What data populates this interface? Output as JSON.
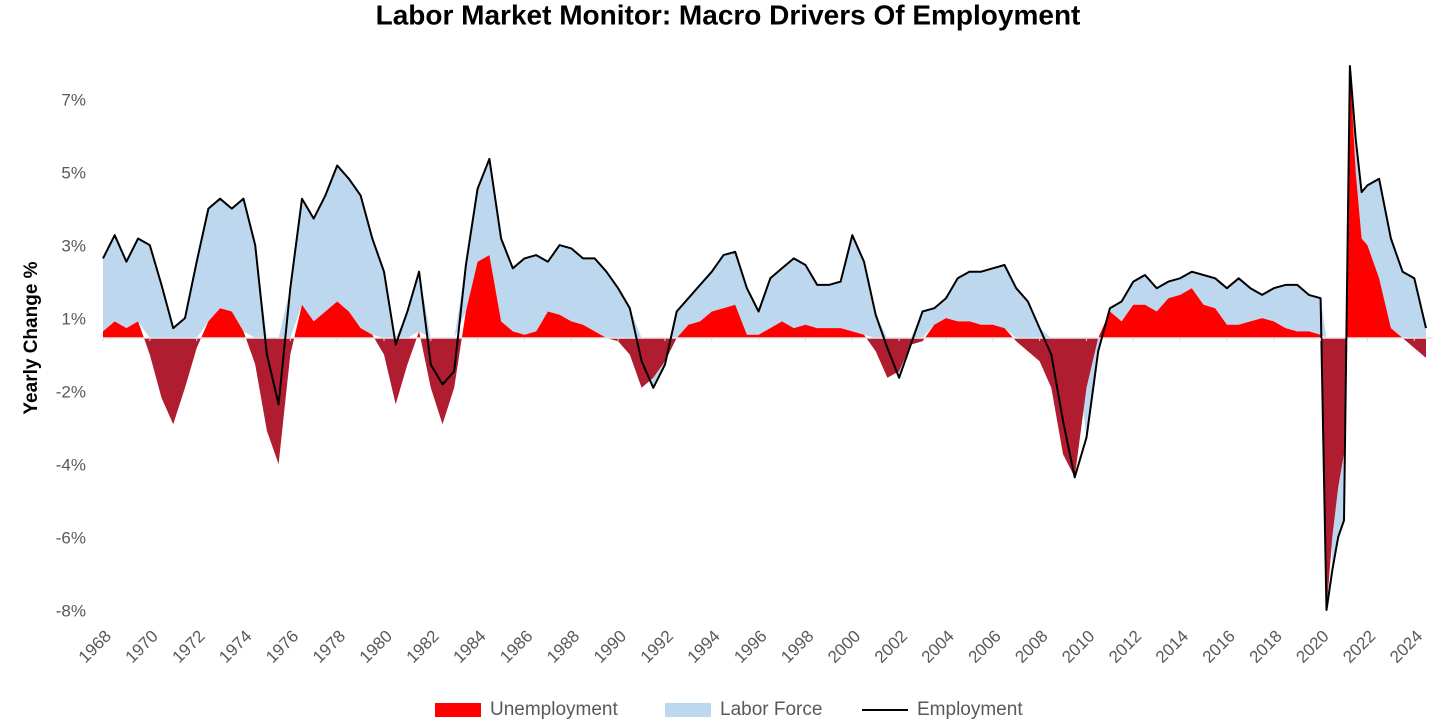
{
  "chart_data": {
    "type": "stacked-area-line",
    "title": "Labor Market Monitor: Macro Drivers Of Employment",
    "ylabel": "Yearly Change %",
    "xlim": [
      1968,
      2024.8
    ],
    "xticks": [
      1968,
      1970,
      1972,
      1974,
      1976,
      1978,
      1980,
      1982,
      1984,
      1986,
      1988,
      1990,
      1992,
      1994,
      1996,
      1998,
      2000,
      2002,
      2004,
      2006,
      2008,
      2010,
      2012,
      2014,
      2016,
      2018,
      2020,
      2022,
      2024
    ],
    "ylim": [
      -8.26,
      8.2
    ],
    "yticks": [
      {
        "value": 7.14,
        "label": "7%"
      },
      {
        "value": 4.94,
        "label": "5%"
      },
      {
        "value": 2.74,
        "label": "3%"
      },
      {
        "value": 0.54,
        "label": "1%"
      },
      {
        "value": -1.66,
        "label": "-2%"
      },
      {
        "value": -3.86,
        "label": "-4%"
      },
      {
        "value": -6.06,
        "label": "-6%"
      },
      {
        "value": -8.26,
        "label": "-8%"
      }
    ],
    "x": [
      1968.0,
      1968.5,
      1969.0,
      1969.5,
      1970.0,
      1970.5,
      1971.0,
      1971.5,
      1972.0,
      1972.5,
      1973.0,
      1973.5,
      1974.0,
      1974.5,
      1975.0,
      1975.5,
      1976.0,
      1976.5,
      1977.0,
      1977.5,
      1978.0,
      1978.5,
      1979.0,
      1979.5,
      1980.0,
      1980.5,
      1981.0,
      1981.5,
      1982.0,
      1982.5,
      1983.0,
      1983.5,
      1984.0,
      1984.5,
      1985.0,
      1985.5,
      1986.0,
      1986.5,
      1987.0,
      1987.5,
      1988.0,
      1988.5,
      1989.0,
      1989.5,
      1990.0,
      1990.5,
      1991.0,
      1991.5,
      1992.0,
      1992.5,
      1993.0,
      1993.5,
      1994.0,
      1994.5,
      1995.0,
      1995.5,
      1996.0,
      1996.5,
      1997.0,
      1997.5,
      1998.0,
      1998.5,
      1999.0,
      1999.5,
      2000.0,
      2000.5,
      2001.0,
      2001.5,
      2002.0,
      2002.5,
      2003.0,
      2003.5,
      2004.0,
      2004.5,
      2005.0,
      2005.5,
      2006.0,
      2006.5,
      2007.0,
      2007.5,
      2008.0,
      2008.5,
      2009.0,
      2009.5,
      2010.0,
      2010.5,
      2011.0,
      2011.5,
      2012.0,
      2012.5,
      2013.0,
      2013.5,
      2014.0,
      2014.5,
      2015.0,
      2015.5,
      2016.0,
      2016.5,
      2017.0,
      2017.5,
      2018.0,
      2018.5,
      2019.0,
      2019.5,
      2020.0,
      2020.25,
      2020.5,
      2020.75,
      2021.0,
      2021.25,
      2021.5,
      2021.75,
      2022.0,
      2022.5,
      2023.0,
      2023.5,
      2024.0,
      2024.5
    ],
    "series": [
      {
        "name": "Unemployment",
        "kind": "area",
        "color": "#ff0000",
        "negative_color": "#b01c30",
        "values": [
          0.2,
          0.5,
          0.3,
          0.5,
          -0.5,
          -1.8,
          -2.6,
          -1.5,
          -0.3,
          0.5,
          0.9,
          0.8,
          0.2,
          -0.8,
          -2.8,
          -3.8,
          -0.5,
          1.0,
          0.5,
          0.8,
          1.1,
          0.8,
          0.3,
          0.1,
          -0.5,
          -2.0,
          -0.8,
          0.2,
          -1.5,
          -2.6,
          -1.5,
          0.8,
          2.3,
          2.5,
          0.5,
          0.2,
          0.1,
          0.2,
          0.8,
          0.7,
          0.5,
          0.4,
          0.2,
          0.0,
          -0.1,
          -0.5,
          -1.5,
          -1.2,
          -0.7,
          0.0,
          0.4,
          0.5,
          0.8,
          0.9,
          1.0,
          0.1,
          0.1,
          0.3,
          0.5,
          0.3,
          0.4,
          0.3,
          0.3,
          0.3,
          0.2,
          0.1,
          -0.4,
          -1.2,
          -1.0,
          -0.2,
          -0.1,
          0.4,
          0.6,
          0.5,
          0.5,
          0.4,
          0.4,
          0.3,
          -0.1,
          -0.4,
          -0.7,
          -1.5,
          -3.5,
          -4.2,
          -1.5,
          0.0,
          0.8,
          0.5,
          1.0,
          1.0,
          0.8,
          1.2,
          1.3,
          1.5,
          1.0,
          0.9,
          0.4,
          0.4,
          0.5,
          0.6,
          0.5,
          0.3,
          0.2,
          0.2,
          0.1,
          -8.2,
          -6.0,
          -4.5,
          -3.5,
          8.2,
          5.0,
          3.0,
          2.8,
          1.8,
          0.3,
          0.0,
          -0.3,
          -0.6
        ]
      },
      {
        "name": "Labor Force",
        "kind": "area",
        "color": "#bdd7ee",
        "values": [
          2.2,
          2.6,
          2.0,
          2.5,
          2.8,
          1.6,
          0.3,
          0.6,
          2.3,
          3.4,
          3.3,
          3.1,
          4.0,
          2.8,
          0,
          0,
          1.5,
          3.2,
          3.1,
          3.5,
          4.1,
          4.0,
          4.0,
          2.9,
          2.0,
          0,
          0.8,
          1.8,
          0,
          0,
          0,
          1.4,
          2.2,
          2.9,
          2.5,
          1.9,
          2.3,
          2.3,
          1.5,
          2.1,
          2.2,
          2.0,
          2.2,
          2.0,
          1.5,
          0.9,
          0,
          -0.3,
          -0.1,
          0.8,
          0.8,
          1.1,
          1.2,
          1.6,
          1.6,
          1.4,
          0.7,
          1.5,
          1.6,
          2.1,
          1.8,
          1.3,
          1.3,
          1.4,
          2.9,
          2.2,
          0.7,
          0,
          -0.2,
          0,
          0.8,
          0.5,
          0.6,
          1.3,
          1.5,
          1.6,
          1.7,
          1.9,
          1.5,
          1.1,
          0.3,
          0,
          0,
          0,
          -1.5,
          -0.4,
          0.1,
          0.6,
          0.7,
          0.9,
          0.7,
          0.5,
          0.5,
          0.5,
          0.9,
          0.9,
          1.1,
          1.4,
          1.0,
          0.7,
          1.0,
          1.3,
          1.4,
          1.1,
          1.1,
          0,
          -1.0,
          -1.5,
          -2.0,
          0,
          1.0,
          1.4,
          1.8,
          3.0,
          2.7,
          2.0,
          1.8,
          0.3
        ]
      },
      {
        "name": "Employment",
        "kind": "line",
        "color": "#000000",
        "values": [
          2.4,
          3.1,
          2.3,
          3.0,
          2.8,
          1.6,
          0.3,
          0.6,
          2.3,
          3.9,
          4.2,
          3.9,
          4.2,
          2.8,
          -0.5,
          -2.0,
          1.5,
          4.2,
          3.6,
          4.3,
          5.2,
          4.8,
          4.3,
          3.0,
          2.0,
          -0.2,
          0.8,
          2.0,
          -0.8,
          -1.4,
          -1.0,
          2.2,
          4.5,
          5.4,
          3.0,
          2.1,
          2.4,
          2.5,
          2.3,
          2.8,
          2.7,
          2.4,
          2.4,
          2.0,
          1.5,
          0.9,
          -0.7,
          -1.5,
          -0.8,
          0.8,
          1.2,
          1.6,
          2.0,
          2.5,
          2.6,
          1.5,
          0.8,
          1.8,
          2.1,
          2.4,
          2.2,
          1.6,
          1.6,
          1.7,
          3.1,
          2.3,
          0.7,
          -0.3,
          -1.2,
          -0.2,
          0.8,
          0.9,
          1.2,
          1.8,
          2.0,
          2.0,
          2.1,
          2.2,
          1.5,
          1.1,
          0.3,
          -0.5,
          -2.5,
          -4.2,
          -3.0,
          -0.4,
          0.9,
          1.1,
          1.7,
          1.9,
          1.5,
          1.7,
          1.8,
          2.0,
          1.9,
          1.8,
          1.5,
          1.8,
          1.5,
          1.3,
          1.5,
          1.6,
          1.6,
          1.3,
          1.2,
          -8.2,
          -7.0,
          -6.0,
          -5.5,
          8.2,
          6.0,
          4.4,
          4.6,
          4.8,
          3.0,
          2.0,
          1.8,
          0.3
        ]
      }
    ]
  }
}
